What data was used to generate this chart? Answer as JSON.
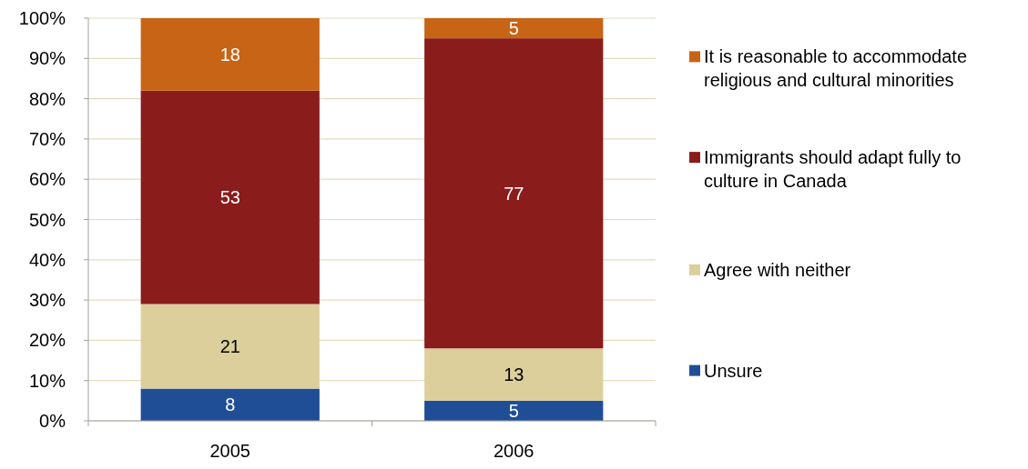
{
  "chart_data": {
    "type": "bar",
    "stacked": true,
    "categories": [
      "2005",
      "2006"
    ],
    "series": [
      {
        "name": "Unsure",
        "color": "#1f4e96",
        "values": [
          8,
          5
        ]
      },
      {
        "name": "Agree with neither",
        "color": "#dccf9c",
        "values": [
          21,
          13
        ]
      },
      {
        "name": "Immigrants should adapt fully to culture in Canada",
        "color": "#8a1c1c",
        "values": [
          53,
          77
        ]
      },
      {
        "name": "It is reasonable to accommodate religious and cultural minorities",
        "color": "#c86416",
        "values": [
          18,
          5
        ]
      }
    ],
    "ylim": [
      0,
      100
    ],
    "yticks": [
      {
        "value": 0,
        "label": "0%"
      },
      {
        "value": 10,
        "label": "10%"
      },
      {
        "value": 20,
        "label": "20%"
      },
      {
        "value": 30,
        "label": "30%"
      },
      {
        "value": 40,
        "label": "40%"
      },
      {
        "value": 50,
        "label": "50%"
      },
      {
        "value": 60,
        "label": "60%"
      },
      {
        "value": 70,
        "label": "70%"
      },
      {
        "value": 80,
        "label": "80%"
      },
      {
        "value": 90,
        "label": "90%"
      },
      {
        "value": 100,
        "label": "100%"
      }
    ],
    "grid": "y",
    "legend": "right",
    "data_labels": true
  }
}
